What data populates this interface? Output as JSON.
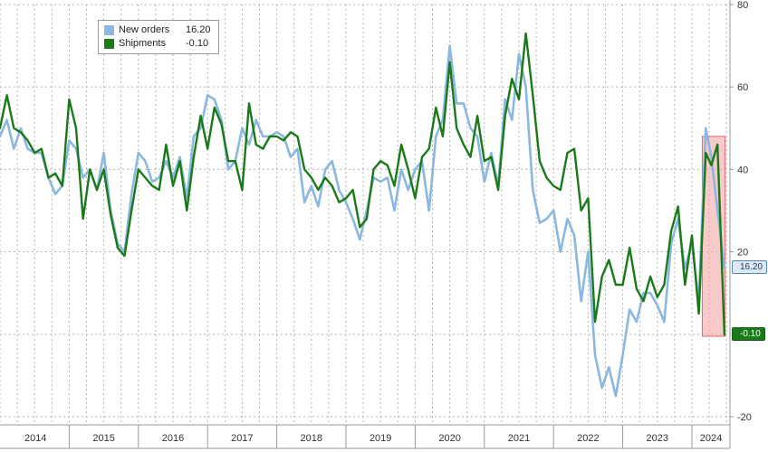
{
  "legend": {
    "items": [
      {
        "name": "New orders",
        "value": "16.20",
        "color": "#8bb8e0"
      },
      {
        "name": "Shipments",
        "value": "-0.10",
        "color": "#1a7a1a"
      }
    ]
  },
  "tags": {
    "new_orders": "16.20",
    "shipments": "-0.10"
  },
  "chart_data": {
    "type": "line",
    "ylim": [
      -22,
      80
    ],
    "y_ticks": [
      80,
      60,
      40,
      20,
      -20
    ],
    "x_range": [
      2014.0,
      2024.55
    ],
    "year_labels": [
      "2014",
      "2015",
      "2016",
      "2017",
      "2018",
      "2019",
      "2020",
      "2021",
      "2022",
      "2023",
      "2024"
    ],
    "grid": true,
    "legend_position": "top-left",
    "highlight": {
      "x": [
        2024.15,
        2024.48
      ],
      "y": [
        -0.5,
        48
      ],
      "color": "#f4a7a7"
    },
    "series": [
      {
        "name": "New orders",
        "color": "#8bb8e0",
        "points": [
          [
            2014.0,
            48
          ],
          [
            2014.1,
            52
          ],
          [
            2014.2,
            45
          ],
          [
            2014.3,
            50
          ],
          [
            2014.4,
            45
          ],
          [
            2014.5,
            44
          ],
          [
            2014.6,
            44
          ],
          [
            2014.7,
            38
          ],
          [
            2014.8,
            34
          ],
          [
            2014.9,
            36
          ],
          [
            2015.0,
            47
          ],
          [
            2015.1,
            45
          ],
          [
            2015.2,
            38
          ],
          [
            2015.3,
            40
          ],
          [
            2015.4,
            35
          ],
          [
            2015.5,
            44
          ],
          [
            2015.6,
            30
          ],
          [
            2015.7,
            22
          ],
          [
            2015.8,
            20
          ],
          [
            2015.9,
            34
          ],
          [
            2016.0,
            44
          ],
          [
            2016.1,
            42
          ],
          [
            2016.2,
            37
          ],
          [
            2016.3,
            38
          ],
          [
            2016.4,
            42
          ],
          [
            2016.5,
            38
          ],
          [
            2016.6,
            43
          ],
          [
            2016.7,
            33
          ],
          [
            2016.8,
            48
          ],
          [
            2016.9,
            50
          ],
          [
            2017.0,
            58
          ],
          [
            2017.1,
            57
          ],
          [
            2017.2,
            52
          ],
          [
            2017.3,
            40
          ],
          [
            2017.4,
            42
          ],
          [
            2017.5,
            50
          ],
          [
            2017.6,
            46
          ],
          [
            2017.7,
            52
          ],
          [
            2017.8,
            48
          ],
          [
            2017.9,
            48
          ],
          [
            2018.0,
            49
          ],
          [
            2018.1,
            48
          ],
          [
            2018.2,
            43
          ],
          [
            2018.3,
            45
          ],
          [
            2018.4,
            32
          ],
          [
            2018.5,
            36
          ],
          [
            2018.6,
            31
          ],
          [
            2018.7,
            40
          ],
          [
            2018.8,
            42
          ],
          [
            2018.9,
            35
          ],
          [
            2019.0,
            32
          ],
          [
            2019.1,
            28
          ],
          [
            2019.2,
            23
          ],
          [
            2019.3,
            30
          ],
          [
            2019.4,
            38
          ],
          [
            2019.5,
            37
          ],
          [
            2019.6,
            38
          ],
          [
            2019.7,
            30
          ],
          [
            2019.8,
            40
          ],
          [
            2019.9,
            35
          ],
          [
            2020.0,
            40
          ],
          [
            2020.1,
            42
          ],
          [
            2020.2,
            30
          ],
          [
            2020.3,
            48
          ],
          [
            2020.4,
            52
          ],
          [
            2020.5,
            70
          ],
          [
            2020.6,
            56
          ],
          [
            2020.7,
            56
          ],
          [
            2020.8,
            50
          ],
          [
            2020.9,
            48
          ],
          [
            2021.0,
            37
          ],
          [
            2021.1,
            44
          ],
          [
            2021.2,
            36
          ],
          [
            2021.3,
            57
          ],
          [
            2021.4,
            52
          ],
          [
            2021.5,
            68
          ],
          [
            2021.6,
            60
          ],
          [
            2021.7,
            35
          ],
          [
            2021.8,
            27
          ],
          [
            2021.9,
            28
          ],
          [
            2022.0,
            30
          ],
          [
            2022.1,
            20
          ],
          [
            2022.2,
            28
          ],
          [
            2022.3,
            24
          ],
          [
            2022.4,
            8
          ],
          [
            2022.5,
            20
          ],
          [
            2022.6,
            -5
          ],
          [
            2022.7,
            -13
          ],
          [
            2022.8,
            -8
          ],
          [
            2022.9,
            -15
          ],
          [
            2023.0,
            -5
          ],
          [
            2023.1,
            6
          ],
          [
            2023.2,
            3
          ],
          [
            2023.3,
            10
          ],
          [
            2023.4,
            10
          ],
          [
            2023.5,
            7
          ],
          [
            2023.6,
            3
          ],
          [
            2023.7,
            22
          ],
          [
            2023.8,
            28
          ],
          [
            2023.9,
            16
          ],
          [
            2024.0,
            22
          ],
          [
            2024.1,
            8
          ],
          [
            2024.2,
            50
          ],
          [
            2024.28,
            43
          ],
          [
            2024.37,
            30
          ],
          [
            2024.47,
            16.2
          ]
        ]
      },
      {
        "name": "Shipments",
        "color": "#1a7a1a",
        "points": [
          [
            2014.0,
            50
          ],
          [
            2014.1,
            58
          ],
          [
            2014.2,
            50
          ],
          [
            2014.3,
            49
          ],
          [
            2014.4,
            47
          ],
          [
            2014.5,
            44
          ],
          [
            2014.6,
            45
          ],
          [
            2014.7,
            38
          ],
          [
            2014.8,
            39
          ],
          [
            2014.9,
            36
          ],
          [
            2015.0,
            57
          ],
          [
            2015.1,
            50
          ],
          [
            2015.2,
            28
          ],
          [
            2015.3,
            40
          ],
          [
            2015.4,
            35
          ],
          [
            2015.5,
            40
          ],
          [
            2015.6,
            29
          ],
          [
            2015.7,
            21
          ],
          [
            2015.8,
            19
          ],
          [
            2015.9,
            30
          ],
          [
            2016.0,
            40
          ],
          [
            2016.1,
            38
          ],
          [
            2016.2,
            36
          ],
          [
            2016.3,
            35
          ],
          [
            2016.4,
            46
          ],
          [
            2016.5,
            36
          ],
          [
            2016.6,
            42
          ],
          [
            2016.7,
            30
          ],
          [
            2016.8,
            43
          ],
          [
            2016.9,
            53
          ],
          [
            2017.0,
            45
          ],
          [
            2017.1,
            55
          ],
          [
            2017.2,
            51
          ],
          [
            2017.3,
            42
          ],
          [
            2017.4,
            42
          ],
          [
            2017.5,
            35
          ],
          [
            2017.6,
            56
          ],
          [
            2017.7,
            46
          ],
          [
            2017.8,
            45
          ],
          [
            2017.9,
            48
          ],
          [
            2018.0,
            48
          ],
          [
            2018.1,
            47
          ],
          [
            2018.2,
            49
          ],
          [
            2018.3,
            48
          ],
          [
            2018.4,
            40
          ],
          [
            2018.5,
            38
          ],
          [
            2018.6,
            35
          ],
          [
            2018.7,
            38
          ],
          [
            2018.8,
            36
          ],
          [
            2018.9,
            32
          ],
          [
            2019.0,
            33
          ],
          [
            2019.1,
            35
          ],
          [
            2019.2,
            26
          ],
          [
            2019.3,
            28
          ],
          [
            2019.4,
            40
          ],
          [
            2019.5,
            42
          ],
          [
            2019.6,
            41
          ],
          [
            2019.7,
            36
          ],
          [
            2019.8,
            46
          ],
          [
            2019.9,
            40
          ],
          [
            2020.0,
            33
          ],
          [
            2020.1,
            43
          ],
          [
            2020.2,
            45
          ],
          [
            2020.3,
            55
          ],
          [
            2020.4,
            48
          ],
          [
            2020.5,
            66
          ],
          [
            2020.6,
            50
          ],
          [
            2020.7,
            46
          ],
          [
            2020.8,
            43
          ],
          [
            2020.9,
            53
          ],
          [
            2021.0,
            42
          ],
          [
            2021.1,
            43
          ],
          [
            2021.2,
            35
          ],
          [
            2021.3,
            53
          ],
          [
            2021.4,
            62
          ],
          [
            2021.5,
            57
          ],
          [
            2021.6,
            73
          ],
          [
            2021.7,
            58
          ],
          [
            2021.8,
            42
          ],
          [
            2021.9,
            38
          ],
          [
            2022.0,
            36
          ],
          [
            2022.1,
            35
          ],
          [
            2022.2,
            44
          ],
          [
            2022.3,
            45
          ],
          [
            2022.4,
            30
          ],
          [
            2022.5,
            33
          ],
          [
            2022.6,
            3
          ],
          [
            2022.7,
            14
          ],
          [
            2022.8,
            18
          ],
          [
            2022.9,
            12
          ],
          [
            2023.0,
            12
          ],
          [
            2023.1,
            21
          ],
          [
            2023.2,
            11
          ],
          [
            2023.3,
            8
          ],
          [
            2023.4,
            14
          ],
          [
            2023.5,
            9
          ],
          [
            2023.6,
            12
          ],
          [
            2023.7,
            25
          ],
          [
            2023.8,
            31
          ],
          [
            2023.9,
            12
          ],
          [
            2024.0,
            24
          ],
          [
            2024.1,
            5
          ],
          [
            2024.2,
            44
          ],
          [
            2024.28,
            41
          ],
          [
            2024.37,
            46
          ],
          [
            2024.47,
            -0.1
          ]
        ]
      }
    ]
  }
}
